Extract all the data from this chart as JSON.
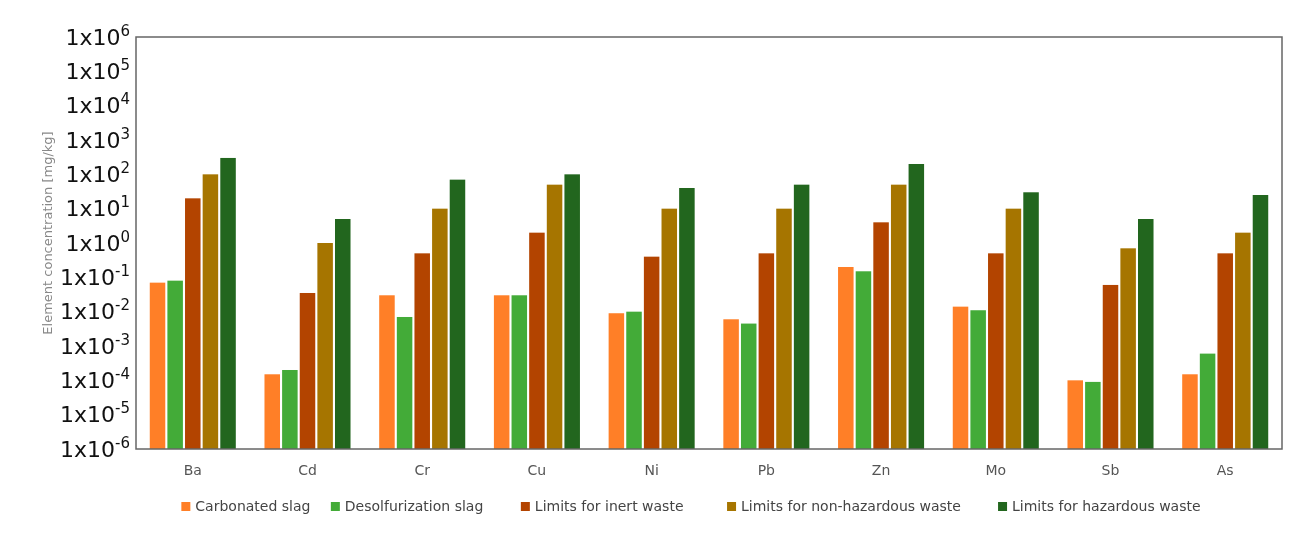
{
  "chart_data": {
    "type": "bar",
    "ylabel": "Element concentration [mg/kg]",
    "log": true,
    "legend": "bottom",
    "grid": false,
    "categories": [
      "Ba",
      "Cd",
      "Cr",
      "Cu",
      "Ni",
      "Pb",
      "Zn",
      "Mo",
      "Sb",
      "As"
    ],
    "ylim": [
      1e-06,
      1000000
    ],
    "yticks": [
      {
        "value": 1e-06,
        "label": "1x10$^{-6}$"
      },
      {
        "value": 1e-05,
        "label": "1x10$^{-5}$"
      },
      {
        "value": 0.0001,
        "label": "1x10$^{-4}$"
      },
      {
        "value": 0.001,
        "label": "1x10$^{-3}$"
      },
      {
        "value": 0.01,
        "label": "1x10$^{-2}$"
      },
      {
        "value": 0.1,
        "label": "1x10$^{-1}$"
      },
      {
        "value": 1,
        "label": "1x10$^{0}$"
      },
      {
        "value": 10,
        "label": "1x10$^{1}$"
      },
      {
        "value": 100,
        "label": "1x10$^{2}$"
      },
      {
        "value": 1000,
        "label": "1x10$^{3}$"
      },
      {
        "value": 10000,
        "label": "1x10$^{4}$"
      },
      {
        "value": 100000,
        "label": "1x10$^{5}$"
      },
      {
        "value": 1000000,
        "label": "1x10$^{6}$"
      }
    ],
    "series": [
      {
        "name": "Carbonated slag",
        "color": "#ff7f27",
        "values": [
          0.07,
          0.00015,
          0.03,
          0.03,
          0.009,
          0.006,
          0.2,
          0.014,
          0.0001,
          0.00015
        ]
      },
      {
        "name": "Desolfurization slag",
        "color": "#43ab38",
        "values": [
          0.08,
          0.0002,
          0.007,
          0.03,
          0.01,
          0.0045,
          0.15,
          0.011,
          9e-05,
          0.0006
        ]
      },
      {
        "name": "Limits for inert waste",
        "color": "#b34400",
        "values": [
          20,
          0.035,
          0.5,
          2,
          0.4,
          0.5,
          4,
          0.5,
          0.06,
          0.5
        ]
      },
      {
        "name": "Limits for non-hazardous waste",
        "color": "#a67500",
        "values": [
          100,
          1,
          10,
          50,
          10,
          10,
          50,
          10,
          0.7,
          2
        ]
      },
      {
        "name": "Limits for hazardous waste",
        "color": "#22661e",
        "values": [
          300,
          5,
          70,
          100,
          40,
          50,
          200,
          30,
          5,
          25
        ]
      }
    ]
  }
}
